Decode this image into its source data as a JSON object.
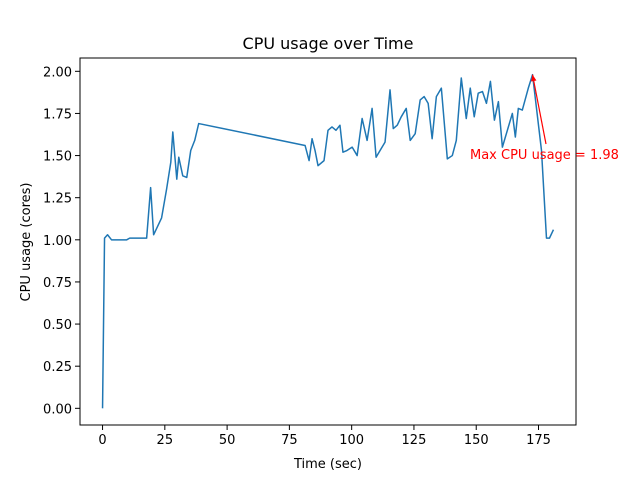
{
  "chart_data": {
    "type": "line",
    "title": "CPU usage over Time",
    "x_label": "Time (sec)",
    "y_label": "CPU usage (cores)",
    "x": [
      0,
      0.8,
      2,
      3.6,
      6.8,
      9.7,
      10.9,
      14.9,
      17.7,
      19.3,
      20.5,
      23.7,
      25.7,
      27.4,
      28.2,
      29.8,
      30.6,
      32.2,
      33.8,
      35.4,
      37,
      38.6,
      81.3,
      82.9,
      84.1,
      85.3,
      86.5,
      88.9,
      90.5,
      92.1,
      93.7,
      95.3,
      96.5,
      98.1,
      100.2,
      102.2,
      104.2,
      106.2,
      108.2,
      109.8,
      111.4,
      113.4,
      115.4,
      116.7,
      118.3,
      119.9,
      121.9,
      123.5,
      125.5,
      127.5,
      129.1,
      130.7,
      132.3,
      134,
      136,
      138.4,
      140.4,
      142,
      144,
      146,
      147.6,
      149.2,
      150.8,
      152.5,
      154.1,
      155.7,
      157.3,
      158.9,
      160.5,
      162.5,
      164.5,
      165.7,
      166.9,
      168.5,
      170.9,
      172.6,
      176.2,
      178.2,
      179.4,
      181
    ],
    "series": [
      {
        "name": "CPU usage",
        "color": "#1f77b4",
        "values": [
          0,
          1.01,
          1.03,
          1.0,
          1.0,
          1.0,
          1.01,
          1.01,
          1.01,
          1.31,
          1.03,
          1.13,
          1.3,
          1.46,
          1.64,
          1.36,
          1.49,
          1.38,
          1.37,
          1.53,
          1.59,
          1.69,
          1.56,
          1.47,
          1.6,
          1.53,
          1.44,
          1.47,
          1.65,
          1.67,
          1.65,
          1.68,
          1.52,
          1.53,
          1.55,
          1.5,
          1.72,
          1.59,
          1.78,
          1.49,
          1.53,
          1.58,
          1.89,
          1.66,
          1.68,
          1.73,
          1.78,
          1.59,
          1.63,
          1.83,
          1.85,
          1.81,
          1.6,
          1.85,
          1.9,
          1.48,
          1.5,
          1.59,
          1.96,
          1.72,
          1.9,
          1.73,
          1.87,
          1.88,
          1.81,
          1.94,
          1.71,
          1.82,
          1.55,
          1.65,
          1.75,
          1.61,
          1.78,
          1.77,
          1.9,
          1.98,
          1.53,
          1.01,
          1.01,
          1.06
        ]
      }
    ],
    "annotation": "Max CPU usage = 1.98",
    "annotation_color": "red",
    "xlim": [
      -9.05,
      190.05
    ],
    "xticks": [
      0,
      25,
      50,
      75,
      100,
      125,
      150,
      175
    ],
    "ylim": [
      -0.099,
      2.079
    ],
    "yticks": [
      {
        "value": 0,
        "label": "0.00"
      },
      {
        "value": 0.25,
        "label": "0.25"
      },
      {
        "value": 0.5,
        "label": "0.50"
      },
      {
        "value": 0.75,
        "label": "0.75"
      },
      {
        "value": 1,
        "label": "1.00"
      },
      {
        "value": 1.25,
        "label": "1.25"
      },
      {
        "value": 1.5,
        "label": "1.50"
      },
      {
        "value": 1.75,
        "label": "1.75"
      },
      {
        "value": 2,
        "label": "2.00"
      }
    ],
    "grid": false
  }
}
